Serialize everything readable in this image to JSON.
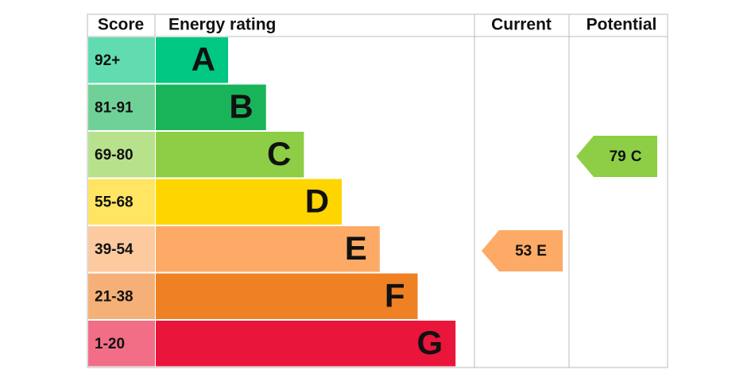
{
  "header": {
    "score": "Score",
    "rating": "Energy rating",
    "current": "Current",
    "potential": "Potential"
  },
  "bands": [
    {
      "score": "92+",
      "letter": "A",
      "color": "#00c781"
    },
    {
      "score": "81-91",
      "letter": "B",
      "color": "#19b459"
    },
    {
      "score": "69-80",
      "letter": "C",
      "color": "#8dce46"
    },
    {
      "score": "55-68",
      "letter": "D",
      "color": "#ffd500"
    },
    {
      "score": "39-54",
      "letter": "E",
      "color": "#fcaa65"
    },
    {
      "score": "21-38",
      "letter": "F",
      "color": "#ef8023"
    },
    {
      "score": "1-20",
      "letter": "G",
      "color": "#e9153b"
    }
  ],
  "current": {
    "value": 53,
    "rating": "E"
  },
  "potential": {
    "value": 79,
    "rating": "C"
  }
}
